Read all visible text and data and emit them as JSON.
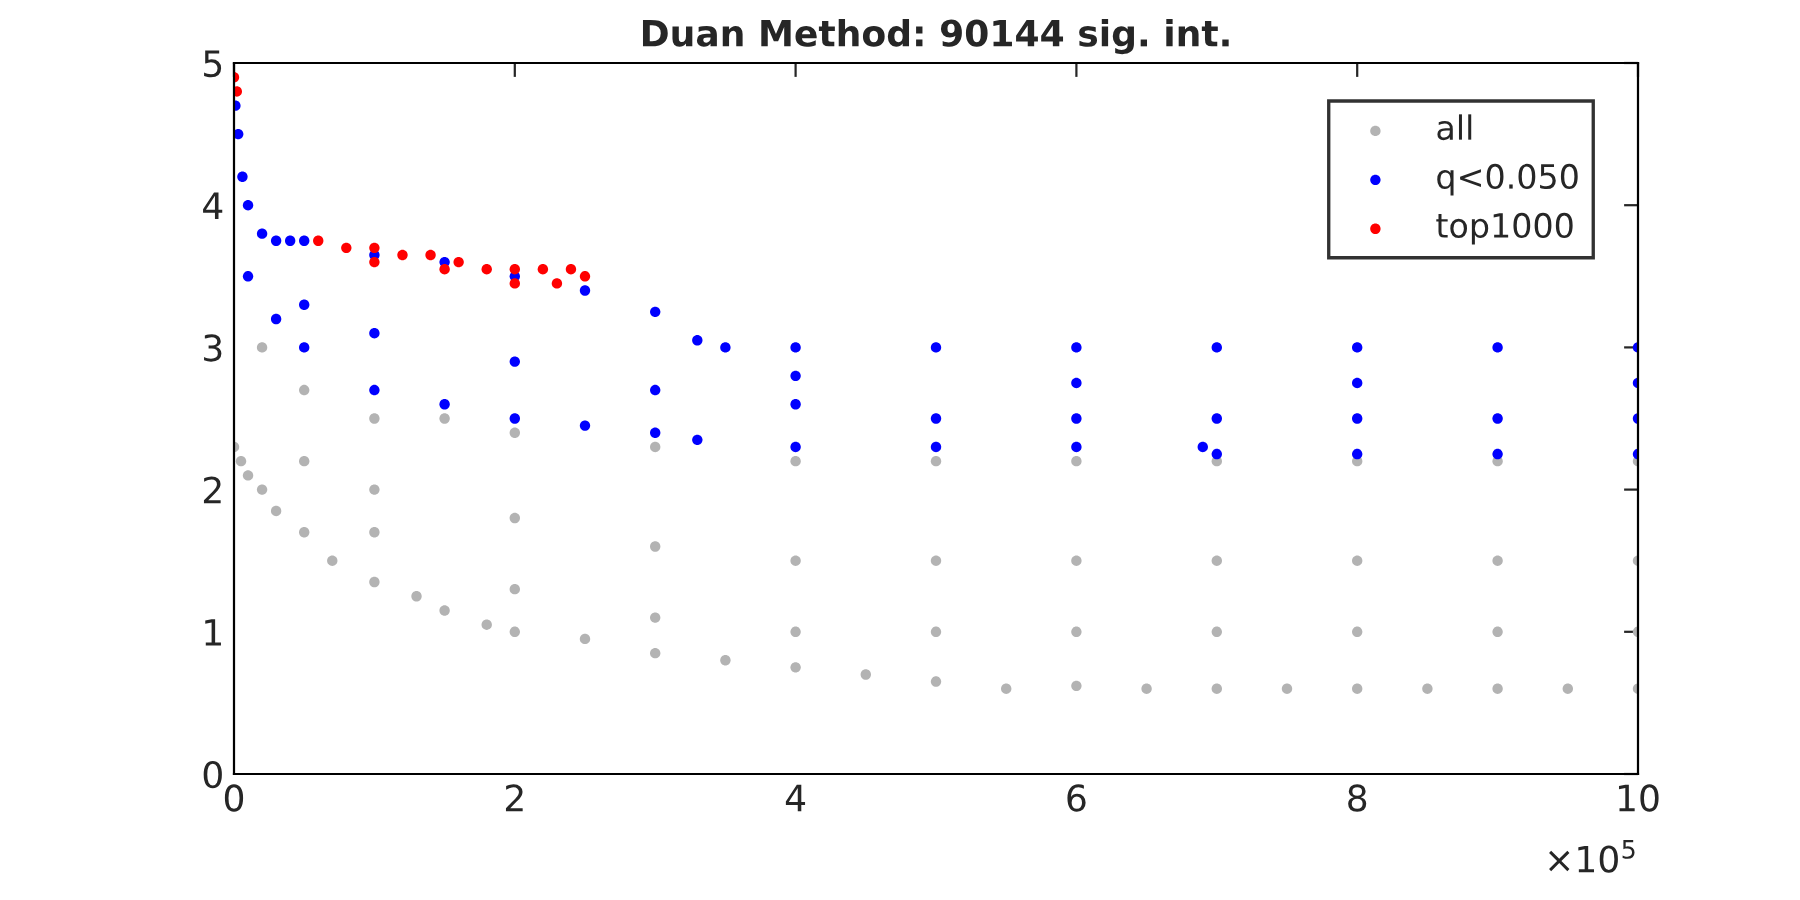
{
  "chart_data": {
    "type": "scatter",
    "title": "Duan Method: 90144 sig. int.",
    "xlim": [
      0,
      10
    ],
    "xticks": [
      0,
      2,
      4,
      6,
      8,
      10
    ],
    "ylim": [
      0,
      5
    ],
    "yticks": [
      0,
      1,
      2,
      3,
      4,
      5
    ],
    "grid": false,
    "legend": "top right",
    "marker": "circle",
    "annotations": [
      "×10$^{5}$"
    ],
    "series": [
      {
        "name": "all",
        "color": "#b3b3b3",
        "x": [
          0,
          0.05,
          0.1,
          0.2,
          0.3,
          0.5,
          0.7,
          1,
          1.3,
          1.5,
          1.8,
          2,
          2.5,
          3,
          3.5,
          4,
          4.5,
          5,
          5.5,
          6,
          6.5,
          7,
          7.5,
          8,
          8.5,
          9,
          9.5,
          10,
          0.2,
          0.5,
          1,
          1.5,
          2,
          3,
          4,
          5,
          6,
          7,
          8,
          9,
          10,
          1,
          2,
          3,
          4,
          5,
          6,
          7,
          8,
          9,
          10,
          0.5,
          1,
          2,
          3,
          4,
          5,
          6,
          7,
          8,
          9,
          10
        ],
        "values": [
          2.3,
          2.2,
          2.1,
          2.0,
          1.85,
          1.7,
          1.5,
          1.35,
          1.25,
          1.15,
          1.05,
          1.0,
          0.95,
          0.85,
          0.8,
          0.75,
          0.7,
          0.65,
          0.6,
          0.62,
          0.6,
          0.6,
          0.6,
          0.6,
          0.6,
          0.6,
          0.6,
          0.6,
          3.0,
          2.7,
          2.5,
          2.5,
          2.4,
          2.3,
          2.2,
          2.2,
          2.2,
          2.2,
          2.2,
          2.2,
          2.2,
          2.0,
          1.8,
          1.6,
          1.5,
          1.5,
          1.5,
          1.5,
          1.5,
          1.5,
          1.5,
          2.2,
          1.7,
          1.3,
          1.1,
          1.0,
          1.0,
          1.0,
          1.0,
          1.0,
          1.0,
          1.0
        ]
      },
      {
        "name": "q<0.050",
        "color": "#0000ff",
        "x": [
          0.01,
          0.03,
          0.06,
          0.1,
          0.2,
          0.3,
          0.5,
          0.4,
          1,
          1.5,
          2,
          2.5,
          3,
          3.3,
          3.5,
          4,
          5,
          6,
          7,
          8,
          9,
          10,
          0.1,
          0.3,
          0.5,
          1,
          1.5,
          2,
          2.5,
          3,
          3.3,
          4,
          5,
          6,
          6.9,
          7,
          8,
          9,
          10,
          0.5,
          1,
          2,
          3,
          4,
          5,
          6,
          7,
          8,
          9,
          10,
          4,
          6,
          8,
          10
        ],
        "values": [
          4.7,
          4.5,
          4.2,
          4.0,
          3.8,
          3.75,
          3.75,
          3.75,
          3.65,
          3.6,
          3.5,
          3.4,
          3.25,
          3.05,
          3.0,
          3.0,
          3.0,
          3.0,
          3.0,
          3.0,
          3.0,
          3.0,
          3.5,
          3.2,
          3.0,
          2.7,
          2.6,
          2.5,
          2.45,
          2.4,
          2.35,
          2.3,
          2.3,
          2.3,
          2.3,
          2.25,
          2.25,
          2.25,
          2.25,
          3.3,
          3.1,
          2.9,
          2.7,
          2.6,
          2.5,
          2.5,
          2.5,
          2.5,
          2.5,
          2.5,
          2.8,
          2.75,
          2.75,
          2.75
        ]
      },
      {
        "name": "top1000",
        "color": "#ff0000",
        "x": [
          0,
          0.02,
          0.6,
          0.8,
          1.0,
          1.2,
          1.4,
          1.6,
          1.8,
          2.0,
          2.2,
          2.4,
          2.5,
          1.0,
          1.5,
          2.0,
          2.3
        ],
        "values": [
          4.9,
          4.8,
          3.75,
          3.7,
          3.7,
          3.65,
          3.65,
          3.6,
          3.55,
          3.55,
          3.55,
          3.55,
          3.5,
          3.6,
          3.55,
          3.45,
          3.45
        ]
      }
    ]
  }
}
